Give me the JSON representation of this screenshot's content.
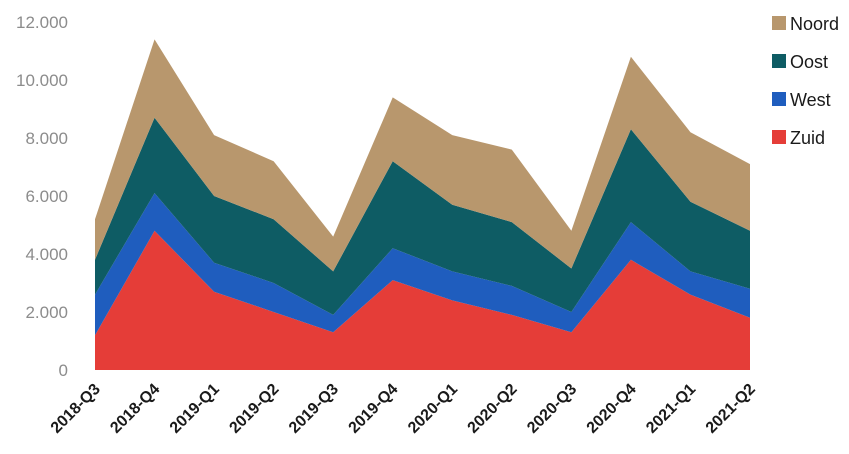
{
  "chart_data": {
    "type": "area",
    "stacked": true,
    "categories": [
      "2018-Q3",
      "2018-Q4",
      "2019-Q1",
      "2019-Q2",
      "2019-Q3",
      "2019-Q4",
      "2020-Q1",
      "2020-Q2",
      "2020-Q3",
      "2020-Q4",
      "2021-Q1",
      "2021-Q2"
    ],
    "series": [
      {
        "name": "Zuid",
        "color": "#e53d38",
        "values": [
          1200,
          4800,
          2700,
          2000,
          1300,
          3100,
          2400,
          1900,
          1300,
          3800,
          2600,
          1800
        ]
      },
      {
        "name": "West",
        "color": "#1f5dbe",
        "values": [
          1400,
          1300,
          1000,
          1000,
          600,
          1100,
          1000,
          1000,
          700,
          1300,
          800,
          1000
        ]
      },
      {
        "name": "Oost",
        "color": "#0e5c64",
        "values": [
          1200,
          2600,
          2300,
          2200,
          1500,
          3000,
          2300,
          2200,
          1500,
          3200,
          2400,
          2000
        ]
      },
      {
        "name": "Noord",
        "color": "#b8976d",
        "values": [
          1400,
          2700,
          2100,
          2000,
          1200,
          2200,
          2400,
          2500,
          1300,
          2500,
          2400,
          2300
        ]
      }
    ],
    "legend_order": [
      "Noord",
      "Oost",
      "West",
      "Zuid"
    ],
    "ylim": [
      0,
      12000
    ],
    "yticks": [
      0,
      2000,
      4000,
      6000,
      8000,
      10000,
      12000
    ],
    "ytick_labels": [
      "0",
      "2.000",
      "4.000",
      "6.000",
      "8.000",
      "10.000",
      "12.000"
    ],
    "legend_position": "right",
    "grid": false
  }
}
